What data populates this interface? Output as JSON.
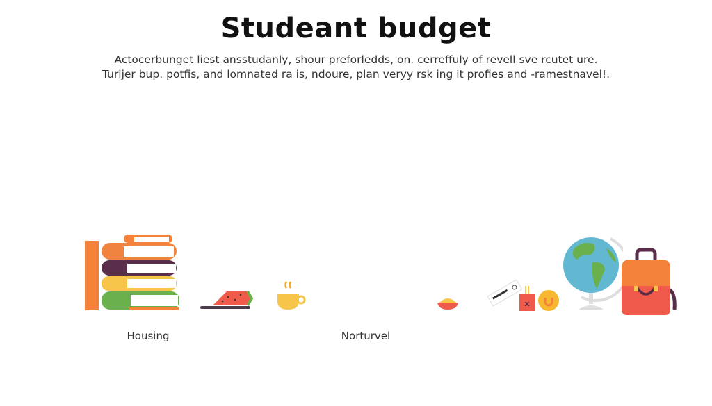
{
  "header": {
    "title": "Studeant budget",
    "description_lines": [
      "Actocerbunget liest ansstudanly, shour preforledds, on. cerreffuly of revell sve rcutet ure.",
      "Turijer bup. potfis, and lomnated ra is,  ndoure, plan veryy rsk ing it profies and -ramestnavel!."
    ]
  },
  "categories": [
    {
      "label": "Housing"
    },
    {
      "label": "Norturvel"
    }
  ],
  "illustrations": [
    "books-icon",
    "watermelon-icon",
    "coffee-cup-icon",
    "food-bowl-icon",
    "ticket-icon",
    "drink-box-icon",
    "coin-icon",
    "globe-icon",
    "backpack-icon"
  ],
  "colors": {
    "orange": "#f5823a",
    "purple": "#5a2e4a",
    "yellow": "#f7c54a",
    "green": "#6ab04c",
    "red": "#ef5a4a",
    "blue": "#62b7d1"
  }
}
